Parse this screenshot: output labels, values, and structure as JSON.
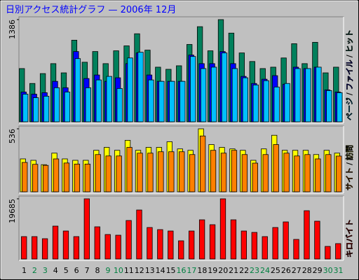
{
  "chart_data": [
    {
      "type": "bar",
      "title": "日別アクセス統計グラフ —  2006年 12月",
      "legend_separator": "/",
      "ylim": [
        0,
        1386
      ],
      "yticks": [
        1386
      ],
      "series": [
        {
          "name": "ページ",
          "color": "#00c0ff",
          "values": [
            375,
            327,
            347,
            462,
            404,
            857,
            462,
            568,
            616,
            452,
            866,
            943,
            568,
            549,
            549,
            549,
            886,
            722,
            741,
            934,
            722,
            597,
            500,
            558,
            472,
            520,
            722,
            722,
            741,
            424,
            395
          ]
        },
        {
          "name": "ファイル",
          "color": "#0000ff",
          "values": [
            404,
            375,
            395,
            549,
            462,
            953,
            587,
            635,
            549,
            597,
            789,
            934,
            635,
            549,
            549,
            549,
            905,
            789,
            789,
            953,
            789,
            616,
            520,
            578,
            626,
            510,
            741,
            722,
            741,
            433,
            404
          ]
        },
        {
          "name": "ヒット",
          "color": "#00805c",
          "values": [
            722,
            520,
            654,
            789,
            664,
            1107,
            808,
            953,
            789,
            963,
            1030,
            1194,
            972,
            741,
            712,
            760,
            1049,
            1290,
            963,
            1386,
            1203,
            934,
            818,
            722,
            741,
            866,
            1059,
            789,
            1078,
            664,
            741
          ]
        }
      ]
    },
    {
      "type": "bar",
      "legend_separator": "/",
      "ylim": [
        0,
        536
      ],
      "yticks": [
        536
      ],
      "series": [
        {
          "name": "サイト",
          "color": "#ff8000",
          "values": [
            250,
            234,
            225,
            280,
            245,
            236,
            236,
            317,
            305,
            305,
            378,
            329,
            329,
            341,
            341,
            341,
            317,
            475,
            353,
            329,
            353,
            317,
            244,
            317,
            402,
            329,
            305,
            317,
            280,
            317,
            304
          ]
        },
        {
          "name": "訪問",
          "color": "#ffff00",
          "values": [
            280,
            268,
            231,
            329,
            280,
            268,
            268,
            353,
            378,
            353,
            438,
            353,
            378,
            378,
            426,
            365,
            353,
            536,
            402,
            378,
            365,
            353,
            268,
            365,
            481,
            353,
            353,
            353,
            317,
            353,
            329
          ]
        }
      ]
    },
    {
      "type": "bar",
      "ylim": [
        0,
        19685
      ],
      "yticks": [
        19685
      ],
      "categories": [
        "1",
        "2",
        "3",
        "4",
        "5",
        "6",
        "7",
        "8",
        "9",
        "10",
        "11",
        "12",
        "13",
        "14",
        "15",
        "16",
        "17",
        "18",
        "19",
        "20",
        "21",
        "22",
        "23",
        "24",
        "25",
        "26",
        "27",
        "28",
        "29",
        "30",
        "31"
      ],
      "label_colors": [
        "#000000",
        "#008040",
        "#008040",
        "#000000",
        "#000000",
        "#000000",
        "#000000",
        "#000000",
        "#008040",
        "#008040",
        "#000000",
        "#000000",
        "#000000",
        "#000000",
        "#000000",
        "#008040",
        "#008040",
        "#000000",
        "#000000",
        "#000000",
        "#000000",
        "#000000",
        "#008040",
        "#008040",
        "#000000",
        "#000000",
        "#000000",
        "#000000",
        "#000000",
        "#008040",
        "#008040"
      ],
      "series": [
        {
          "name": "キロバイト",
          "color": "#ff0000",
          "values": [
            7325,
            7325,
            6638,
            10758,
            9156,
            7325,
            19685,
            10529,
            8012,
            7783,
            12590,
            16023,
            10301,
            9614,
            9156,
            5951,
            9156,
            12818,
            11216,
            19685,
            12818,
            9156,
            8698,
            7325,
            10301,
            12132,
            6409,
            15794,
            12361,
            4120,
            5036
          ]
        }
      ]
    }
  ]
}
